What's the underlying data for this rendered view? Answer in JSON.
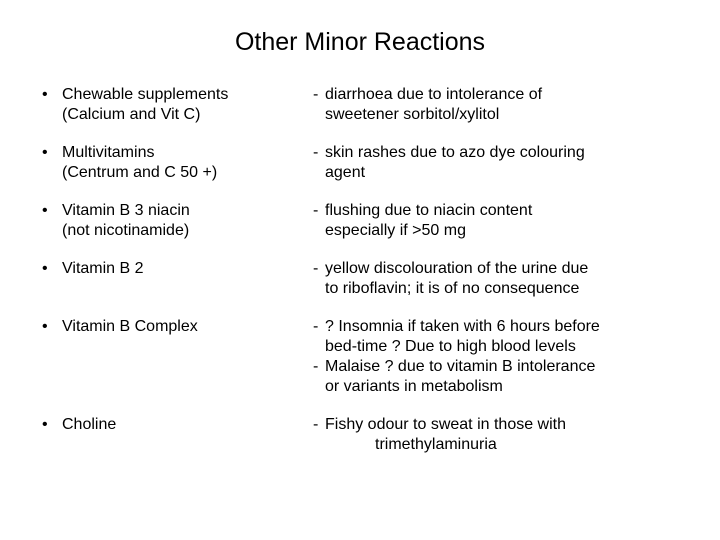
{
  "title": "Other Minor Reactions",
  "rows": [
    {
      "left_l1": "Chewable supplements",
      "left_l2": "(Calcium and Vit C)",
      "right": [
        {
          "l1": "diarrhoea due to intolerance of",
          "l2": "sweetener sorbitol/xylitol"
        }
      ]
    },
    {
      "left_l1": "Multivitamins",
      "left_l2": "(Centrum and C 50 +)",
      "right": [
        {
          "l1": "skin rashes due to azo dye colouring",
          "l2": "agent"
        }
      ]
    },
    {
      "left_l1": "Vitamin B 3 niacin",
      "left_l2": "(not nicotinamide)",
      "right": [
        {
          "l1": "flushing due to niacin content",
          "l2": "especially if >50 mg"
        }
      ]
    },
    {
      "left_l1": "Vitamin B 2",
      "left_l2": "",
      "right": [
        {
          "l1": "yellow discolouration of the urine due",
          "l2": "to riboflavin; it is of no consequence"
        }
      ]
    },
    {
      "left_l1": "Vitamin B Complex",
      "left_l2": "",
      "right": [
        {
          "l1": "? Insomnia if taken with 6 hours before",
          "l2": "bed-time ? Due to high blood levels"
        },
        {
          "l1": "Malaise ? due to vitamin B intolerance",
          "l2": "or variants in metabolism"
        }
      ]
    },
    {
      "left_l1": "Choline",
      "left_l2": "",
      "right": [
        {
          "l1": "Fishy odour to sweat in those with",
          "l2_indent": "trimethylaminuria"
        }
      ]
    }
  ],
  "style": {
    "background_color": "#ffffff",
    "text_color": "#000000",
    "title_fontsize": 25,
    "body_fontsize": 16,
    "font_family": "Arial"
  }
}
